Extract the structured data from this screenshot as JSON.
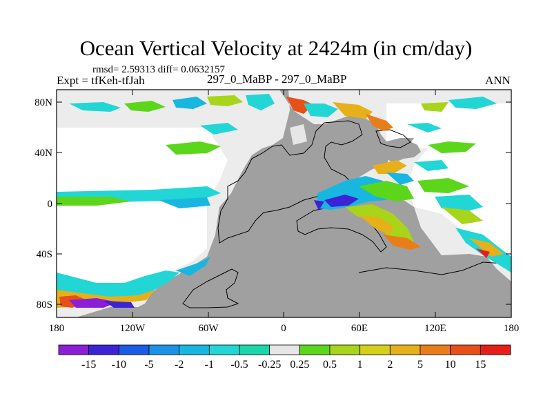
{
  "title": "Ocean Vertical Velocity at 2424m (in cm/day)",
  "stats": "rmsd= 2.59313 diff= 0.0632157",
  "experiment": "Expt = tfKeh-tfJah",
  "case": "297_0_MaBP - 297_0_MaBP",
  "season": "ANN",
  "lat_ticks": [
    "80N",
    "40N",
    "0",
    "40S",
    "80S"
  ],
  "lon_ticks": [
    "180",
    "120W",
    "60W",
    "0",
    "60E",
    "120E",
    "180"
  ],
  "legend": {
    "labels": [
      "-15",
      "-10",
      "-5",
      "-2",
      "-1",
      "-0.5",
      "-0.25",
      "0.25",
      "0.5",
      "1",
      "2",
      "5",
      "10",
      "15"
    ],
    "colors": [
      "#8a1fd6",
      "#3c23d6",
      "#1b5ce6",
      "#1a93e6",
      "#18b7e0",
      "#22d6d6",
      "#19d7a8",
      "#e6e6e6",
      "#5bd61b",
      "#a8d419",
      "#d6cf19",
      "#e6b019",
      "#e87e19",
      "#e85019",
      "#e61e19"
    ]
  },
  "colors": {
    "land": "#a0a0a0",
    "no_data_ocean": "#ececec",
    "ocean_fill": "#ffffff"
  }
}
